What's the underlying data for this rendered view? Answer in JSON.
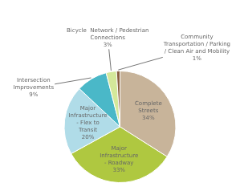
{
  "chart_data": {
    "type": "pie",
    "categories": [
      "Complete\nStreets",
      "Major\nInfrastructure\n- Roadway",
      "Major\nInfrastructure\n- Flex to\nTransit",
      "Intersection\nImprovements",
      "Bicycle  Network / Pedestrian\nConnections",
      "Community\nTransportation / Parking\n/ Clean Air and Mobility"
    ],
    "values": [
      34,
      33,
      20,
      9,
      3,
      1
    ],
    "value_labels": [
      "34%",
      "33%",
      "20%",
      "9%",
      "3%",
      "1%"
    ],
    "colors": [
      "#c8b49a",
      "#afc840",
      "#b0dce8",
      "#4ab8c8",
      "#d4e89a",
      "#8b6040"
    ],
    "data_labels": true,
    "legend": false
  }
}
